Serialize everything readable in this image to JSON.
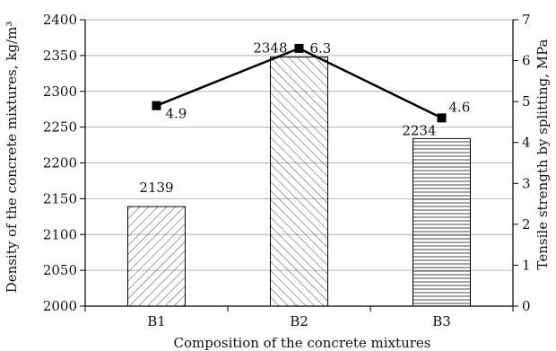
{
  "chart_data": {
    "type": "bar",
    "categories": [
      "B1",
      "B2",
      "B3"
    ],
    "xlabel": "Composition of the concrete mixtures",
    "ylabel_left": "Density of the concrete mixtures, kg/m³",
    "ylabel_right": "Tensile strength by splitting, MPa",
    "ylim_left": [
      2000,
      2400
    ],
    "ylim_right": [
      0,
      7
    ],
    "yticks_left": [
      "2000",
      "2050",
      "2100",
      "2150",
      "2200",
      "2250",
      "2300",
      "2350",
      "2400"
    ],
    "yticks_right": [
      "0",
      "1",
      "2",
      "3",
      "4",
      "5",
      "6",
      "7"
    ],
    "grid": true,
    "series": [
      {
        "type": "bar",
        "axis": "left",
        "values": [
          2139,
          2348,
          2234
        ],
        "labels": [
          "2139",
          "2348",
          "2234"
        ],
        "patterns": [
          "diagonal-up",
          "diagonal-down",
          "horizontal"
        ]
      },
      {
        "type": "line",
        "axis": "right",
        "values": [
          4.9,
          6.3,
          4.6
        ],
        "labels": [
          "4.9",
          "6.3",
          "4.6"
        ],
        "marker": "square"
      }
    ],
    "colors": {
      "line": "#000000",
      "bar_fill": "#ffffff",
      "grid": "#b3b3b3"
    }
  }
}
